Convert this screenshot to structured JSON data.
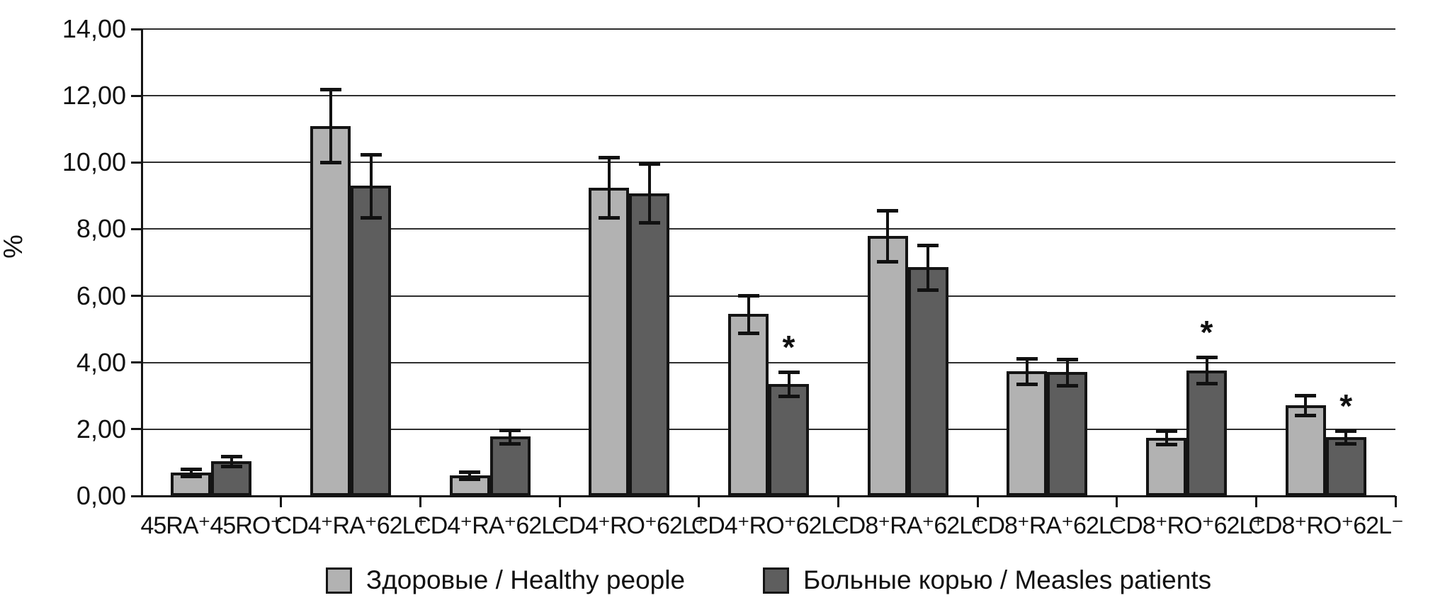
{
  "chart_data": {
    "type": "bar",
    "title": "",
    "ylabel": "%",
    "xlabel": "",
    "ylim": [
      0,
      14
    ],
    "ytick_step": 2,
    "ytick_labels": [
      "0,00",
      "2,00",
      "4,00",
      "6,00",
      "8,00",
      "10,00",
      "12,00",
      "14,00"
    ],
    "grid": "horizontal",
    "legend_position": "bottom",
    "significance_marker": "*",
    "categories": [
      "45RA⁺45RO⁺",
      "CD4⁺RA⁺62L⁺",
      "CD4⁺RA⁺62L⁻",
      "CD4⁺RO⁺62L⁺",
      "CD4⁺RO⁺62L⁻",
      "CD8⁺RA⁺62L⁺",
      "CD8⁺RA⁺62L⁻",
      "CD8⁺RO⁺62L⁺",
      "CD8⁺RO⁺62L⁻"
    ],
    "series": [
      {
        "name": "Здоровые / Healthy people",
        "color": "#b2b2b2",
        "values": [
          0.7,
          11.1,
          0.62,
          9.25,
          5.45,
          7.8,
          3.74,
          1.75,
          2.72
        ],
        "errors": [
          0.1,
          1.1,
          0.1,
          0.9,
          0.56,
          0.77,
          0.38,
          0.2,
          0.29
        ],
        "significance": [
          false,
          false,
          false,
          false,
          false,
          false,
          false,
          false,
          false
        ]
      },
      {
        "name": "Больные корью / Measles patients",
        "color": "#5e5e5e",
        "values": [
          1.05,
          9.3,
          1.78,
          9.08,
          3.36,
          6.86,
          3.71,
          3.77,
          1.77
        ],
        "errors": [
          0.15,
          0.95,
          0.2,
          0.88,
          0.36,
          0.67,
          0.39,
          0.4,
          0.19
        ],
        "significance": [
          false,
          false,
          false,
          false,
          true,
          false,
          false,
          true,
          true
        ]
      }
    ]
  }
}
